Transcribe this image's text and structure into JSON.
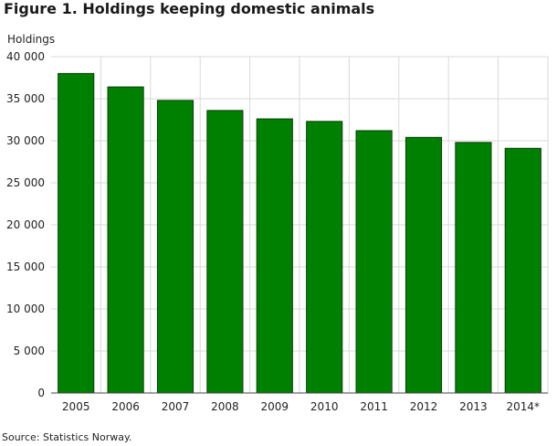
{
  "title": "Figure 1. Holdings keeping domestic animals",
  "source": "Source: Statistics Norway.",
  "colors": {
    "bar": "#008000",
    "bar_stroke": "#0a3d0a",
    "grid": "#d9d9d9",
    "axis": "#444444"
  },
  "chart_data": {
    "type": "bar",
    "title": "Figure 1. Holdings keeping domestic animals",
    "xlabel": "",
    "ylabel": "Holdings",
    "categories": [
      "2005",
      "2006",
      "2007",
      "2008",
      "2009",
      "2010",
      "2011",
      "2012",
      "2013",
      "2014*"
    ],
    "values": [
      38000,
      36400,
      34800,
      33600,
      32600,
      32300,
      31200,
      30400,
      29800,
      29100
    ],
    "ylim": [
      0,
      40000
    ],
    "yticks": [
      0,
      5000,
      10000,
      15000,
      20000,
      25000,
      30000,
      35000,
      40000
    ],
    "ytick_labels": [
      "0",
      "5 000",
      "10 000",
      "15 000",
      "20 000",
      "25 000",
      "30 000",
      "35 000",
      "40 000"
    ],
    "grid": true,
    "legend": "none"
  }
}
